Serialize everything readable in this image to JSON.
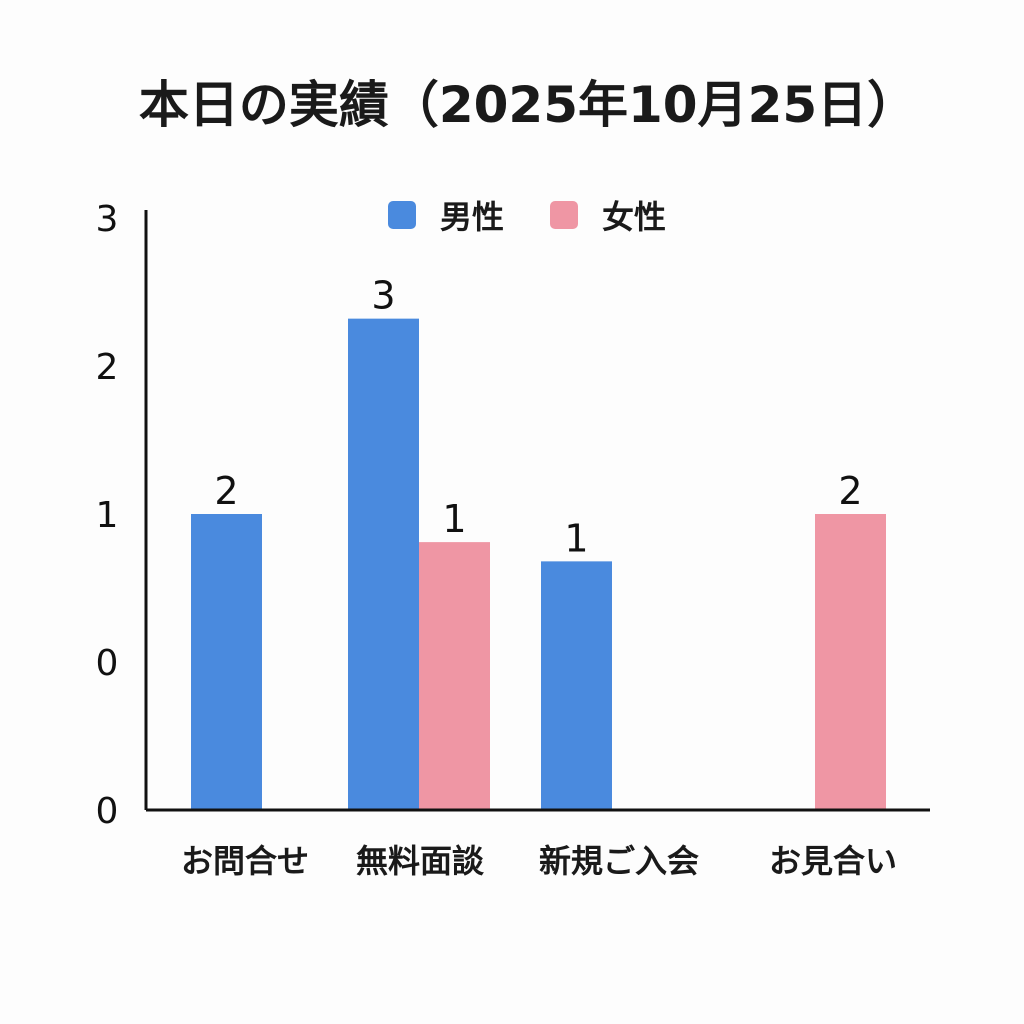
{
  "chart_data": {
    "type": "bar",
    "title": "本日の実績（2025年10月25日）",
    "categories": [
      "お問合せ",
      "無料面談",
      "新規ご入会",
      "お見合い"
    ],
    "series": [
      {
        "name": "男性",
        "color": "#4a8ade",
        "values": [
          2,
          3,
          1,
          null
        ],
        "bar_heights": [
          1,
          2.32,
          0.68,
          null
        ]
      },
      {
        "name": "女性",
        "color": "#ef96a4",
        "values": [
          null,
          1,
          null,
          2
        ],
        "bar_heights": [
          null,
          0.81,
          null,
          1
        ]
      }
    ],
    "y_tick_labels": [
      "0",
      "0",
      "1",
      "2",
      "3"
    ],
    "ylim": [
      -1,
      3
    ],
    "legend_position": "top-center",
    "grid": false
  }
}
